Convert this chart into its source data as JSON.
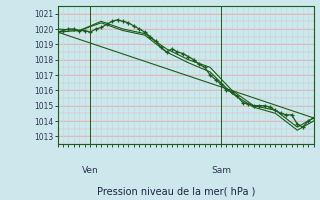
{
  "bg_color": "#cce8ec",
  "line_color": "#1a5c1a",
  "xlabel": "Pression niveau de la mer( hPa )",
  "ylim": [
    1012.5,
    1021.5
  ],
  "yticks": [
    1013,
    1014,
    1015,
    1016,
    1017,
    1018,
    1019,
    1020,
    1021
  ],
  "xlim": [
    0,
    47
  ],
  "ven_x": 6,
  "sam_x": 30,
  "series1_x": [
    0,
    1,
    2,
    3,
    4,
    5,
    6,
    7,
    8,
    9,
    10,
    11,
    12,
    13,
    14,
    15,
    16,
    17,
    18,
    19,
    20,
    21,
    22,
    23,
    24,
    25,
    26,
    27,
    28,
    29,
    30,
    31,
    32,
    33,
    34,
    35,
    36,
    37,
    38,
    39,
    40,
    41,
    42,
    43,
    44,
    45,
    46,
    47
  ],
  "series1_y": [
    1019.8,
    1019.9,
    1020.0,
    1020.0,
    1019.9,
    1019.9,
    1019.8,
    1020.0,
    1020.1,
    1020.3,
    1020.5,
    1020.6,
    1020.5,
    1020.4,
    1020.2,
    1020.0,
    1019.8,
    1019.5,
    1019.2,
    1018.8,
    1018.5,
    1018.7,
    1018.5,
    1018.4,
    1018.2,
    1018.0,
    1017.7,
    1017.5,
    1017.0,
    1016.7,
    1016.4,
    1016.0,
    1015.9,
    1015.6,
    1015.2,
    1015.1,
    1015.0,
    1015.0,
    1015.0,
    1014.9,
    1014.7,
    1014.5,
    1014.4,
    1014.4,
    1013.8,
    1013.6,
    1014.0,
    1014.2
  ],
  "series2_x": [
    0,
    4,
    8,
    12,
    16,
    20,
    24,
    28,
    32,
    36,
    40,
    44,
    47
  ],
  "series2_y": [
    1019.8,
    1019.9,
    1020.5,
    1020.0,
    1019.7,
    1018.7,
    1018.0,
    1017.5,
    1016.0,
    1015.0,
    1014.7,
    1013.6,
    1014.2
  ],
  "series3_x": [
    0,
    47
  ],
  "series3_y": [
    1019.8,
    1014.2
  ],
  "series4_x": [
    0,
    4,
    8,
    12,
    16,
    20,
    24,
    28,
    32,
    36,
    40,
    44,
    47
  ],
  "series4_y": [
    1020.0,
    1019.9,
    1020.4,
    1019.9,
    1019.6,
    1018.5,
    1017.8,
    1017.2,
    1015.8,
    1014.9,
    1014.5,
    1013.4,
    1014.0
  ],
  "grid_h_color": "#e8b0b0",
  "grid_v_color": "#b8d8dc",
  "spine_color": "#1a5c1a",
  "tick_label_color": "#333355",
  "xlabel_color": "#222244",
  "label_color": "#333355"
}
